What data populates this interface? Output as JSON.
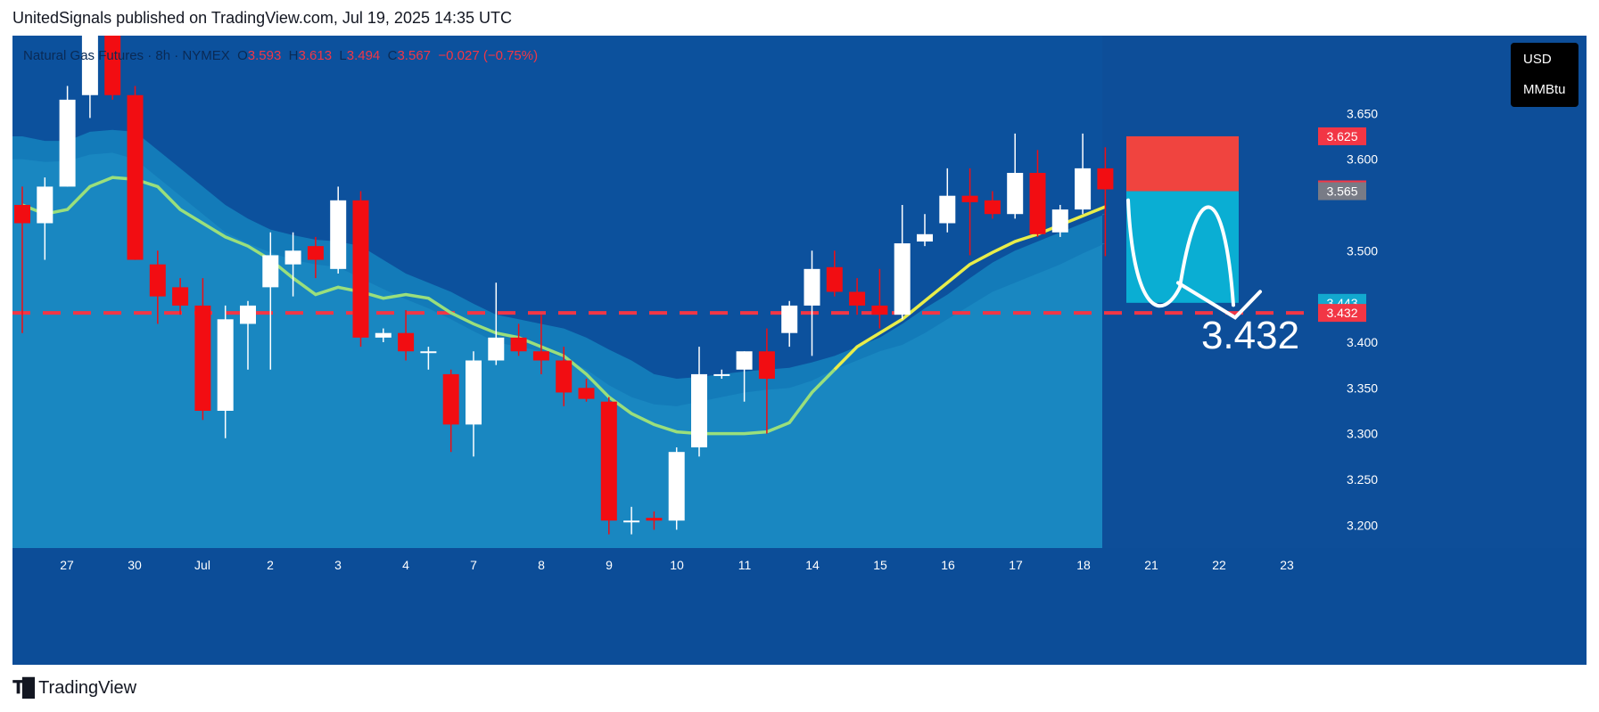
{
  "header": {
    "text": "UnitedSignals published on TradingView.com, Jul 19, 2025 14:35 UTC"
  },
  "legend": {
    "symbol": "Natural Gas Futures · 8h · NYMEX",
    "o_label": "O",
    "o_value": "3.593",
    "h_label": "H",
    "h_value": "3.613",
    "l_label": "L",
    "l_value": "3.494",
    "c_label": "C",
    "c_value": "3.567",
    "change": "−0.027 (−0.75%)"
  },
  "units": {
    "currency": "USD",
    "unit": "MMBtu"
  },
  "footer": {
    "brand": "TradingView"
  },
  "colors": {
    "background": "#0c4d98",
    "future_bg": "#0d4e99",
    "bull": "#ffffff",
    "bear": "#f20d12",
    "ema_fast": "#e8ed4a",
    "ema_fast_old": "#9adf7c",
    "cloud": "#1a9fd0",
    "target_line": "#f23645",
    "stop_box": "#f0443f",
    "target_box": "#0aaed3",
    "label_red": "#f23645",
    "label_gray": "#787b86",
    "label_teal": "#12a9cf"
  },
  "chart_data": {
    "type": "candlestick",
    "timeframe": "8h",
    "ylim": [
      3.175,
      3.735
    ],
    "y_ticks": [
      3.2,
      3.25,
      3.3,
      3.35,
      3.4,
      3.5,
      3.6,
      3.65
    ],
    "y_tick_labels": [
      "3.200",
      "3.250",
      "3.300",
      "3.350",
      "3.400",
      "3.500",
      "3.600",
      "3.650"
    ],
    "x_labels": [
      "27",
      "30",
      "Jul",
      "2",
      "3",
      "4",
      "7",
      "8",
      "9",
      "10",
      "11",
      "14",
      "15",
      "16",
      "17",
      "18",
      "21",
      "22",
      "23"
    ],
    "candles": [
      {
        "o": 3.55,
        "h": 3.57,
        "l": 3.41,
        "c": 3.53
      },
      {
        "o": 3.53,
        "h": 3.58,
        "l": 3.49,
        "c": 3.57
      },
      {
        "o": 3.57,
        "h": 3.68,
        "l": 3.57,
        "c": 3.665
      },
      {
        "o": 3.67,
        "h": 3.76,
        "l": 3.645,
        "c": 3.74
      },
      {
        "o": 3.74,
        "h": 3.76,
        "l": 3.665,
        "c": 3.67
      },
      {
        "o": 3.67,
        "h": 3.68,
        "l": 3.49,
        "c": 3.49
      },
      {
        "o": 3.485,
        "h": 3.5,
        "l": 3.42,
        "c": 3.45
      },
      {
        "o": 3.46,
        "h": 3.47,
        "l": 3.43,
        "c": 3.44
      },
      {
        "o": 3.44,
        "h": 3.47,
        "l": 3.315,
        "c": 3.325
      },
      {
        "o": 3.325,
        "h": 3.44,
        "l": 3.295,
        "c": 3.425
      },
      {
        "o": 3.42,
        "h": 3.445,
        "l": 3.37,
        "c": 3.44
      },
      {
        "o": 3.46,
        "h": 3.52,
        "l": 3.37,
        "c": 3.495
      },
      {
        "o": 3.485,
        "h": 3.52,
        "l": 3.45,
        "c": 3.5
      },
      {
        "o": 3.505,
        "h": 3.515,
        "l": 3.47,
        "c": 3.49
      },
      {
        "o": 3.48,
        "h": 3.57,
        "l": 3.475,
        "c": 3.555
      },
      {
        "o": 3.555,
        "h": 3.565,
        "l": 3.395,
        "c": 3.405
      },
      {
        "o": 3.405,
        "h": 3.415,
        "l": 3.4,
        "c": 3.41
      },
      {
        "o": 3.41,
        "h": 3.435,
        "l": 3.38,
        "c": 3.39
      },
      {
        "o": 3.39,
        "h": 3.395,
        "l": 3.37,
        "c": 3.39
      },
      {
        "o": 3.365,
        "h": 3.37,
        "l": 3.28,
        "c": 3.31
      },
      {
        "o": 3.31,
        "h": 3.39,
        "l": 3.275,
        "c": 3.38
      },
      {
        "o": 3.38,
        "h": 3.465,
        "l": 3.375,
        "c": 3.405
      },
      {
        "o": 3.405,
        "h": 3.42,
        "l": 3.385,
        "c": 3.39
      },
      {
        "o": 3.39,
        "h": 3.43,
        "l": 3.365,
        "c": 3.38
      },
      {
        "o": 3.38,
        "h": 3.395,
        "l": 3.33,
        "c": 3.345
      },
      {
        "o": 3.35,
        "h": 3.36,
        "l": 3.335,
        "c": 3.338
      },
      {
        "o": 3.335,
        "h": 3.34,
        "l": 3.19,
        "c": 3.205
      },
      {
        "o": 3.205,
        "h": 3.22,
        "l": 3.19,
        "c": 3.205
      },
      {
        "o": 3.208,
        "h": 3.215,
        "l": 3.195,
        "c": 3.205
      },
      {
        "o": 3.205,
        "h": 3.285,
        "l": 3.195,
        "c": 3.28
      },
      {
        "o": 3.285,
        "h": 3.395,
        "l": 3.275,
        "c": 3.365
      },
      {
        "o": 3.365,
        "h": 3.37,
        "l": 3.36,
        "c": 3.365
      },
      {
        "o": 3.37,
        "h": 3.39,
        "l": 3.335,
        "c": 3.39
      },
      {
        "o": 3.39,
        "h": 3.415,
        "l": 3.3,
        "c": 3.36
      },
      {
        "o": 3.41,
        "h": 3.445,
        "l": 3.395,
        "c": 3.44
      },
      {
        "o": 3.44,
        "h": 3.5,
        "l": 3.385,
        "c": 3.48
      },
      {
        "o": 3.482,
        "h": 3.5,
        "l": 3.45,
        "c": 3.455
      },
      {
        "o": 3.455,
        "h": 3.47,
        "l": 3.43,
        "c": 3.44
      },
      {
        "o": 3.44,
        "h": 3.48,
        "l": 3.415,
        "c": 3.43
      },
      {
        "o": 3.43,
        "h": 3.55,
        "l": 3.425,
        "c": 3.508
      },
      {
        "o": 3.51,
        "h": 3.54,
        "l": 3.505,
        "c": 3.518
      },
      {
        "o": 3.53,
        "h": 3.59,
        "l": 3.52,
        "c": 3.56
      },
      {
        "o": 3.56,
        "h": 3.59,
        "l": 3.495,
        "c": 3.553
      },
      {
        "o": 3.555,
        "h": 3.565,
        "l": 3.535,
        "c": 3.54
      },
      {
        "o": 3.54,
        "h": 3.628,
        "l": 3.535,
        "c": 3.585
      },
      {
        "o": 3.585,
        "h": 3.61,
        "l": 3.515,
        "c": 3.518
      },
      {
        "o": 3.52,
        "h": 3.55,
        "l": 3.515,
        "c": 3.545
      },
      {
        "o": 3.545,
        "h": 3.628,
        "l": 3.54,
        "c": 3.59
      },
      {
        "o": 3.59,
        "h": 3.613,
        "l": 3.494,
        "c": 3.567
      }
    ],
    "ema_fast": [
      3.55,
      3.54,
      3.545,
      3.57,
      3.58,
      3.578,
      3.57,
      3.545,
      3.53,
      3.515,
      3.505,
      3.49,
      3.47,
      3.452,
      3.46,
      3.455,
      3.448,
      3.452,
      3.448,
      3.432,
      3.42,
      3.41,
      3.405,
      3.395,
      3.385,
      3.365,
      3.34,
      3.322,
      3.31,
      3.302,
      3.3,
      3.3,
      3.3,
      3.302,
      3.312,
      3.345,
      3.37,
      3.395,
      3.41,
      3.425,
      3.445,
      3.465,
      3.485,
      3.498,
      3.51,
      3.518,
      3.528,
      3.538,
      3.548
    ],
    "cloud_upper": [
      3.625,
      3.62,
      3.62,
      3.63,
      3.632,
      3.63,
      3.61,
      3.59,
      3.57,
      3.55,
      3.535,
      3.523,
      3.517,
      3.512,
      3.51,
      3.505,
      3.49,
      3.475,
      3.465,
      3.455,
      3.442,
      3.43,
      3.425,
      3.42,
      3.415,
      3.405,
      3.392,
      3.38,
      3.365,
      3.36,
      3.362,
      3.365,
      3.368,
      3.37,
      3.372,
      3.378,
      3.385,
      3.395,
      3.405,
      3.42,
      3.437,
      3.452,
      3.47,
      3.487,
      3.5,
      3.51,
      3.52,
      3.53,
      3.54
    ],
    "cloud_lower": [
      3.6,
      3.597,
      3.598,
      3.605,
      3.607,
      3.6,
      3.58,
      3.56,
      3.54,
      3.52,
      3.508,
      3.498,
      3.49,
      3.485,
      3.482,
      3.47,
      3.458,
      3.447,
      3.437,
      3.425,
      3.412,
      3.4,
      3.395,
      3.39,
      3.383,
      3.37,
      3.353,
      3.34,
      3.332,
      3.33,
      3.335,
      3.34,
      3.345,
      3.348,
      3.35,
      3.358,
      3.37,
      3.38,
      3.39,
      3.397,
      3.41,
      3.425,
      3.44,
      3.455,
      3.465,
      3.475,
      3.485,
      3.497,
      3.508
    ],
    "target_line": 3.432,
    "position": {
      "entry": 3.565,
      "stop": 3.625,
      "target": 3.443
    },
    "annotation": "3.432",
    "price_labels": [
      {
        "value": 3.625,
        "label": "3.625",
        "color": "red"
      },
      {
        "value": 3.567,
        "label": "3.567",
        "color": "red"
      },
      {
        "value": 3.565,
        "label": "3.565",
        "color": "gray"
      },
      {
        "value": 3.443,
        "label": "3.443",
        "color": "teal"
      },
      {
        "value": 3.432,
        "label": "3.432",
        "color": "red"
      }
    ]
  }
}
